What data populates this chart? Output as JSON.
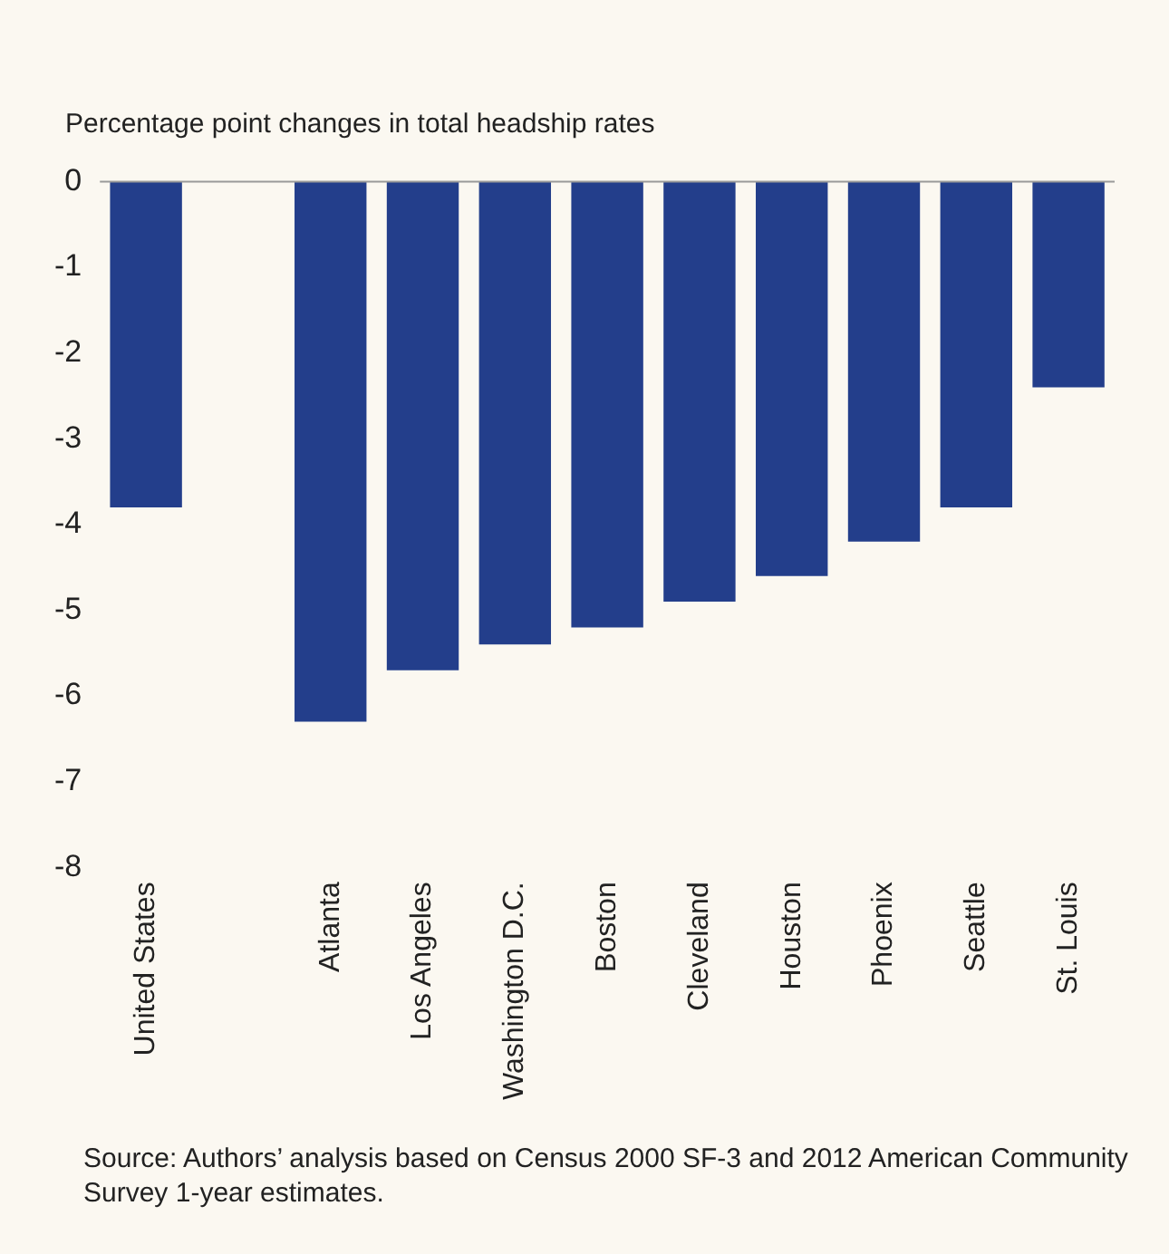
{
  "chart_data": {
    "type": "bar",
    "ylabel": "Percentage point changes in total headship rates",
    "categories": [
      "United States",
      null,
      "Atlanta",
      "Los Angeles",
      "Washington D.C.",
      "Boston",
      "Cleveland",
      "Houston",
      "Phoenix",
      "Seattle",
      "St. Louis"
    ],
    "values": [
      -3.8,
      null,
      -6.3,
      -5.7,
      -5.4,
      -5.2,
      -4.9,
      -4.6,
      -4.2,
      -3.8,
      -2.4
    ],
    "color": "#233e8b",
    "ylim": [
      -8,
      0
    ],
    "yticks": [
      -8,
      -7,
      -6,
      -5,
      -4,
      -3,
      -2,
      -1,
      0
    ],
    "grid": false,
    "legend": false,
    "annotations": [
      "Source: Authors’ analysis based on Census 2000 SF-3 and 2012 American Community Survey 1-year estimates."
    ]
  }
}
